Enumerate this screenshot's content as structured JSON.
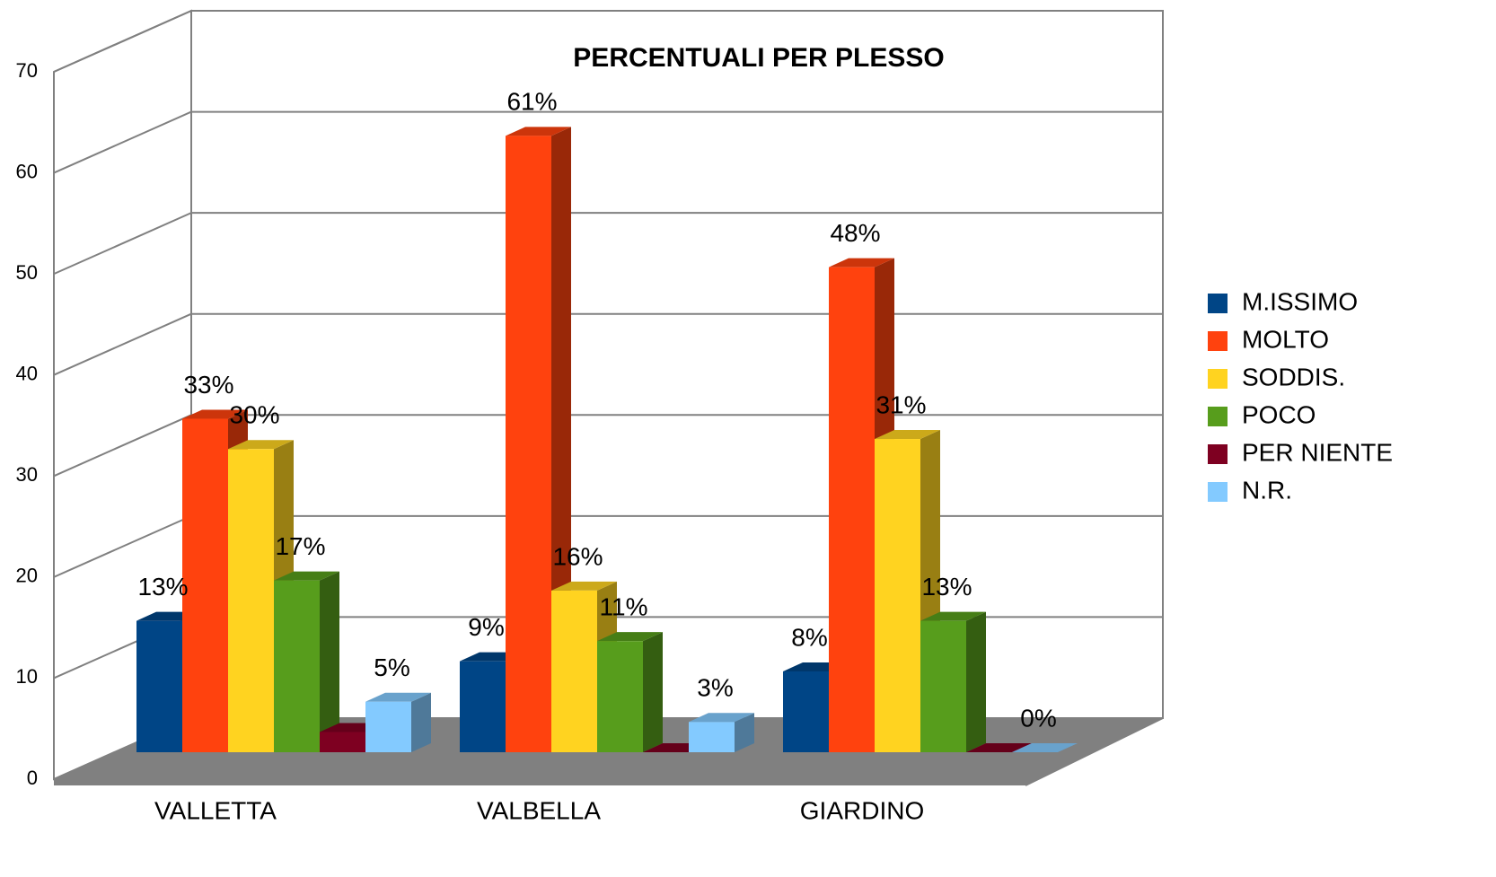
{
  "chart_data": {
    "type": "bar3d",
    "title": "PERCENTUALI PER PLESSO",
    "categories": [
      "VALLETTA",
      "VALBELLA",
      "GIARDINO"
    ],
    "series": [
      {
        "name": "M.ISSIMO",
        "color": "#004586",
        "values": [
          13,
          9,
          8
        ],
        "value_labels": [
          "13%",
          "9%",
          "8%"
        ]
      },
      {
        "name": "MOLTO",
        "color": "#ff420e",
        "values": [
          33,
          61,
          48
        ],
        "value_labels": [
          "33%",
          "61%",
          "48%"
        ]
      },
      {
        "name": "SODDIS.",
        "color": "#ffd320",
        "values": [
          30,
          16,
          31
        ],
        "value_labels": [
          "30%",
          "16%",
          "31%"
        ]
      },
      {
        "name": "POCO",
        "color": "#579d1c",
        "values": [
          17,
          11,
          13
        ],
        "value_labels": [
          "17%",
          "11%",
          "13%"
        ]
      },
      {
        "name": "PER NIENTE",
        "color": "#7e0021",
        "values": [
          2,
          0,
          0
        ],
        "value_labels": [
          null,
          null,
          null
        ]
      },
      {
        "name": "N.R.",
        "color": "#83caff",
        "values": [
          5,
          3,
          0
        ],
        "value_labels": [
          "5%",
          "3%",
          "0%"
        ]
      }
    ],
    "ylim": [
      0,
      70
    ],
    "yticks": [
      0,
      10,
      20,
      30,
      40,
      50,
      60,
      70
    ],
    "grid": true,
    "legend": "right"
  }
}
